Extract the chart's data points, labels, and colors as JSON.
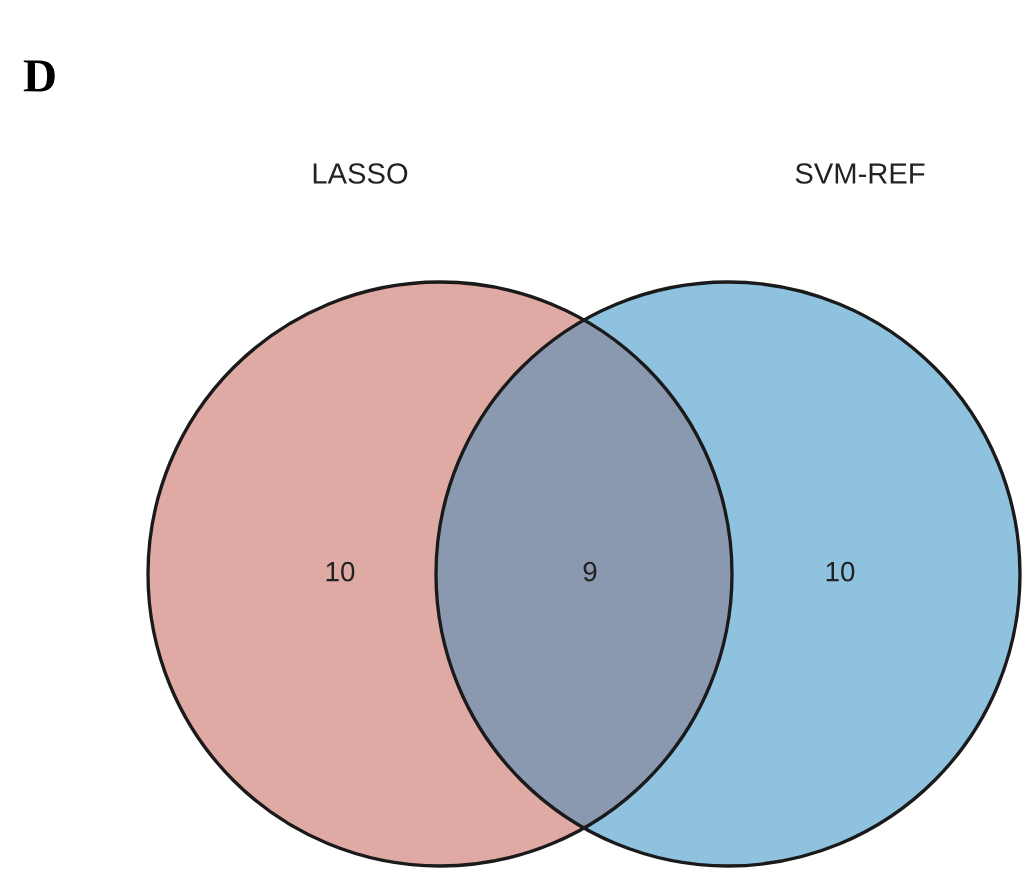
{
  "chart_data": {
    "type": "other",
    "title": "D",
    "categories": [
      "LASSO",
      null,
      "SVM-REF"
    ],
    "values": [
      10,
      9,
      10
    ],
    "colors": [
      "#dfaaa3",
      "#8a98b0",
      "#8fc2df"
    ],
    "data_labels": true
  }
}
